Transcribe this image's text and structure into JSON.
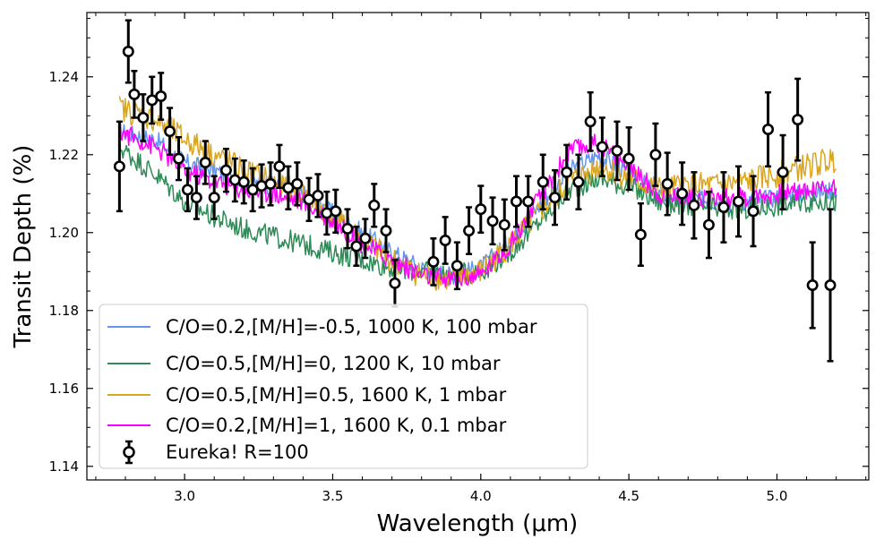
{
  "chart_data": {
    "type": "line",
    "title": "",
    "xlabel": "Wavelength (μm)",
    "ylabel": "Transit Depth (%)",
    "xlim": [
      2.67,
      5.31
    ],
    "ylim": [
      1.1365,
      1.2565
    ],
    "xticks": [
      3.0,
      3.5,
      4.0,
      4.5,
      5.0
    ],
    "xtick_labels": [
      "3.0",
      "3.5",
      "4.0",
      "4.5",
      "5.0"
    ],
    "yticks": [
      1.14,
      1.16,
      1.18,
      1.2,
      1.22,
      1.24
    ],
    "ytick_labels": [
      "1.14",
      "1.16",
      "1.18",
      "1.20",
      "1.22",
      "1.24"
    ],
    "grid": false,
    "legend_position": "lower-left",
    "model_x_range": [
      2.78,
      5.2
    ],
    "series": [
      {
        "name": "C/O=0.2,[M/H]=-0.5, 1000 K, 100 mbar",
        "color": "#6495ed",
        "x": [
          2.78,
          2.9,
          3.0,
          3.1,
          3.2,
          3.3,
          3.4,
          3.5,
          3.6,
          3.7,
          3.8,
          3.9,
          4.0,
          4.1,
          4.2,
          4.3,
          4.4,
          4.5,
          4.6,
          4.7,
          4.8,
          4.9,
          5.0,
          5.1,
          5.2
        ],
        "y": [
          1.226,
          1.224,
          1.218,
          1.216,
          1.213,
          1.212,
          1.21,
          1.205,
          1.2,
          1.195,
          1.191,
          1.189,
          1.191,
          1.198,
          1.207,
          1.216,
          1.22,
          1.215,
          1.21,
          1.209,
          1.208,
          1.208,
          1.209,
          1.21,
          1.211
        ]
      },
      {
        "name": "C/O=0.5,[M/H]=0, 1200 K, 10 mbar",
        "color": "#2e8b57",
        "x": [
          2.78,
          2.9,
          3.0,
          3.1,
          3.2,
          3.3,
          3.4,
          3.5,
          3.6,
          3.7,
          3.8,
          3.9,
          4.0,
          4.1,
          4.2,
          4.3,
          4.4,
          4.5,
          4.6,
          4.7,
          4.8,
          4.9,
          5.0,
          5.1,
          5.2
        ],
        "y": [
          1.222,
          1.215,
          1.208,
          1.204,
          1.201,
          1.199,
          1.197,
          1.195,
          1.193,
          1.191,
          1.19,
          1.189,
          1.19,
          1.195,
          1.203,
          1.211,
          1.214,
          1.212,
          1.208,
          1.207,
          1.206,
          1.206,
          1.207,
          1.208,
          1.208
        ]
      },
      {
        "name": "C/O=0.5,[M/H]=0.5, 1600 K, 1 mbar",
        "color": "#daa520",
        "x": [
          2.78,
          2.9,
          3.0,
          3.1,
          3.2,
          3.3,
          3.4,
          3.5,
          3.6,
          3.7,
          3.8,
          3.9,
          4.0,
          4.1,
          4.2,
          4.3,
          4.4,
          4.5,
          4.6,
          4.7,
          4.8,
          4.9,
          5.0,
          5.1,
          5.2
        ],
        "y": [
          1.232,
          1.229,
          1.224,
          1.22,
          1.216,
          1.213,
          1.21,
          1.204,
          1.198,
          1.193,
          1.189,
          1.188,
          1.19,
          1.197,
          1.205,
          1.213,
          1.217,
          1.214,
          1.211,
          1.212,
          1.212,
          1.213,
          1.215,
          1.217,
          1.219
        ]
      },
      {
        "name": "C/O=0.2,[M/H]=1, 1600 K, 0.1 mbar",
        "color": "#ff00ff",
        "x": [
          2.78,
          2.9,
          3.0,
          3.1,
          3.2,
          3.3,
          3.4,
          3.5,
          3.6,
          3.7,
          3.8,
          3.9,
          4.0,
          4.1,
          4.2,
          4.3,
          4.4,
          4.5,
          4.6,
          4.7,
          4.8,
          4.9,
          5.0,
          5.1,
          5.2
        ],
        "y": [
          1.226,
          1.222,
          1.216,
          1.213,
          1.211,
          1.21,
          1.208,
          1.203,
          1.197,
          1.193,
          1.189,
          1.188,
          1.189,
          1.197,
          1.209,
          1.221,
          1.223,
          1.217,
          1.21,
          1.209,
          1.209,
          1.209,
          1.21,
          1.211,
          1.212
        ]
      }
    ],
    "errorbar_series": {
      "name": "Eureka! R=100",
      "x": [
        2.78,
        2.81,
        2.83,
        2.86,
        2.89,
        2.92,
        2.95,
        2.98,
        3.01,
        3.04,
        3.07,
        3.1,
        3.14,
        3.17,
        3.2,
        3.23,
        3.26,
        3.29,
        3.32,
        3.35,
        3.38,
        3.42,
        3.45,
        3.48,
        3.51,
        3.55,
        3.58,
        3.61,
        3.64,
        3.68,
        3.71,
        3.84,
        3.88,
        3.92,
        3.96,
        4.0,
        4.04,
        4.08,
        4.12,
        4.16,
        4.21,
        4.25,
        4.29,
        4.33,
        4.37,
        4.41,
        4.46,
        4.5,
        4.54,
        4.59,
        4.63,
        4.68,
        4.72,
        4.77,
        4.82,
        4.87,
        4.92,
        4.97,
        5.02,
        5.07,
        5.12,
        5.18
      ],
      "y": [
        1.217,
        1.2465,
        1.2355,
        1.2295,
        1.234,
        1.235,
        1.226,
        1.219,
        1.211,
        1.209,
        1.218,
        1.209,
        1.216,
        1.2135,
        1.213,
        1.211,
        1.212,
        1.2125,
        1.217,
        1.2115,
        1.2125,
        1.2085,
        1.2095,
        1.205,
        1.2055,
        1.201,
        1.1965,
        1.1985,
        1.207,
        1.2005,
        1.187,
        1.1925,
        1.198,
        1.1915,
        1.2005,
        1.206,
        1.203,
        1.202,
        1.208,
        1.208,
        1.213,
        1.209,
        1.2155,
        1.213,
        1.2285,
        1.222,
        1.221,
        1.219,
        1.1995,
        1.22,
        1.2125,
        1.21,
        1.207,
        1.202,
        1.2065,
        1.208,
        1.2055,
        1.2265,
        1.2155,
        1.229,
        1.1865,
        1.1865
      ],
      "yerr": [
        0.0115,
        0.008,
        0.006,
        0.006,
        0.006,
        0.006,
        0.006,
        0.0055,
        0.0055,
        0.0055,
        0.0055,
        0.0055,
        0.0055,
        0.0055,
        0.0055,
        0.0055,
        0.0055,
        0.0055,
        0.0055,
        0.0055,
        0.0055,
        0.0055,
        0.0055,
        0.0055,
        0.0055,
        0.005,
        0.005,
        0.005,
        0.0055,
        0.0055,
        0.006,
        0.006,
        0.006,
        0.006,
        0.006,
        0.006,
        0.006,
        0.0065,
        0.0065,
        0.0065,
        0.007,
        0.007,
        0.007,
        0.007,
        0.0075,
        0.0075,
        0.0075,
        0.008,
        0.008,
        0.008,
        0.008,
        0.008,
        0.0085,
        0.0085,
        0.009,
        0.009,
        0.009,
        0.0095,
        0.0095,
        0.0105,
        0.011,
        0.0195
      ]
    }
  }
}
